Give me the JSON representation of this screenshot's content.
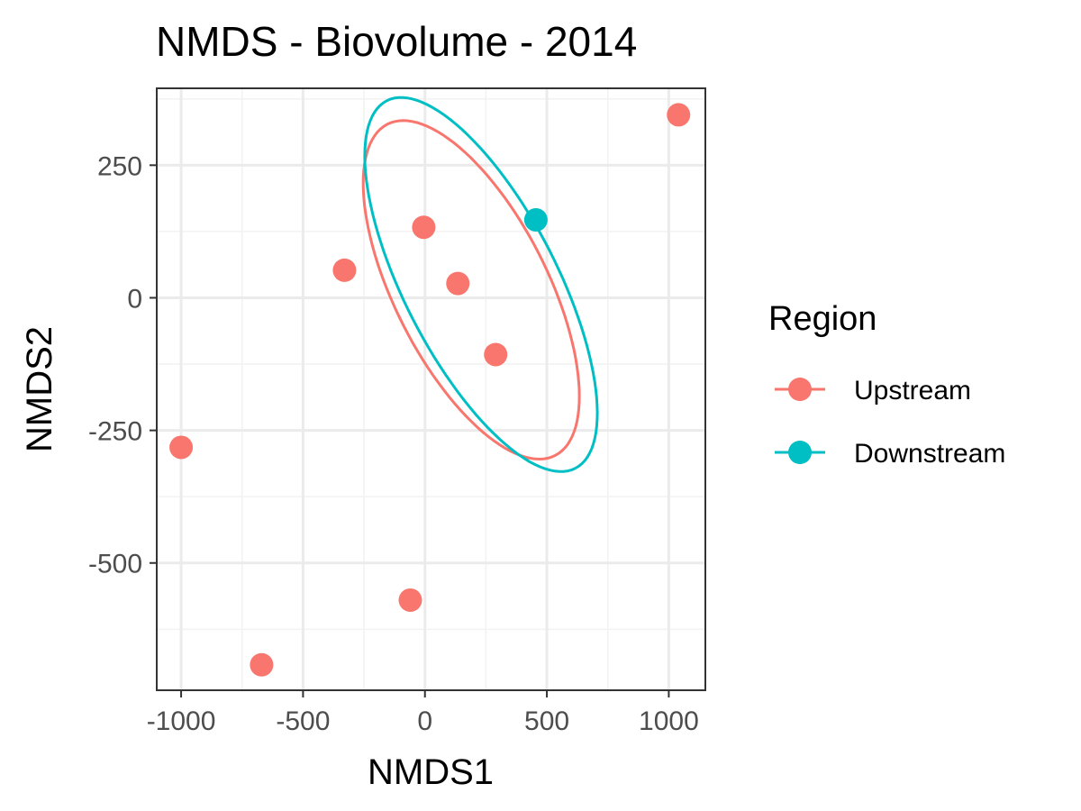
{
  "chart_data": {
    "type": "scatter",
    "title": "NMDS - Biovolume - 2014",
    "xlabel": "NMDS1",
    "ylabel": "NMDS2",
    "xlim": [
      -1100,
      1150
    ],
    "ylim": [
      -740,
      395
    ],
    "x_ticks": [
      -1000,
      -500,
      0,
      500,
      1000
    ],
    "x_tick_labels": [
      "-1000",
      "-500",
      "0",
      "500",
      "1000"
    ],
    "y_ticks": [
      -500,
      -250,
      0,
      250
    ],
    "y_tick_labels": [
      "-500",
      "-250",
      "0",
      "250"
    ],
    "grid": true,
    "legend_position": "right",
    "legend_title": "Region",
    "series": [
      {
        "name": "Upstream",
        "color": "#F8766D",
        "points": [
          {
            "x": 1040,
            "y": 345
          },
          {
            "x": -5,
            "y": 133
          },
          {
            "x": -330,
            "y": 52
          },
          {
            "x": 135,
            "y": 27
          },
          {
            "x": 290,
            "y": -107
          },
          {
            "x": -1000,
            "y": -282
          },
          {
            "x": -60,
            "y": -570
          },
          {
            "x": -670,
            "y": -692
          }
        ],
        "ellipse": {
          "cx": 190,
          "cy": 15,
          "rx": 500,
          "ry": 220,
          "angle_deg": -31
        }
      },
      {
        "name": "Downstream",
        "color": "#00BFC4",
        "points": [
          {
            "x": 455,
            "y": 147
          }
        ],
        "ellipse": {
          "cx": 230,
          "cy": 25,
          "rx": 550,
          "ry": 222,
          "angle_deg": -33
        }
      }
    ]
  }
}
